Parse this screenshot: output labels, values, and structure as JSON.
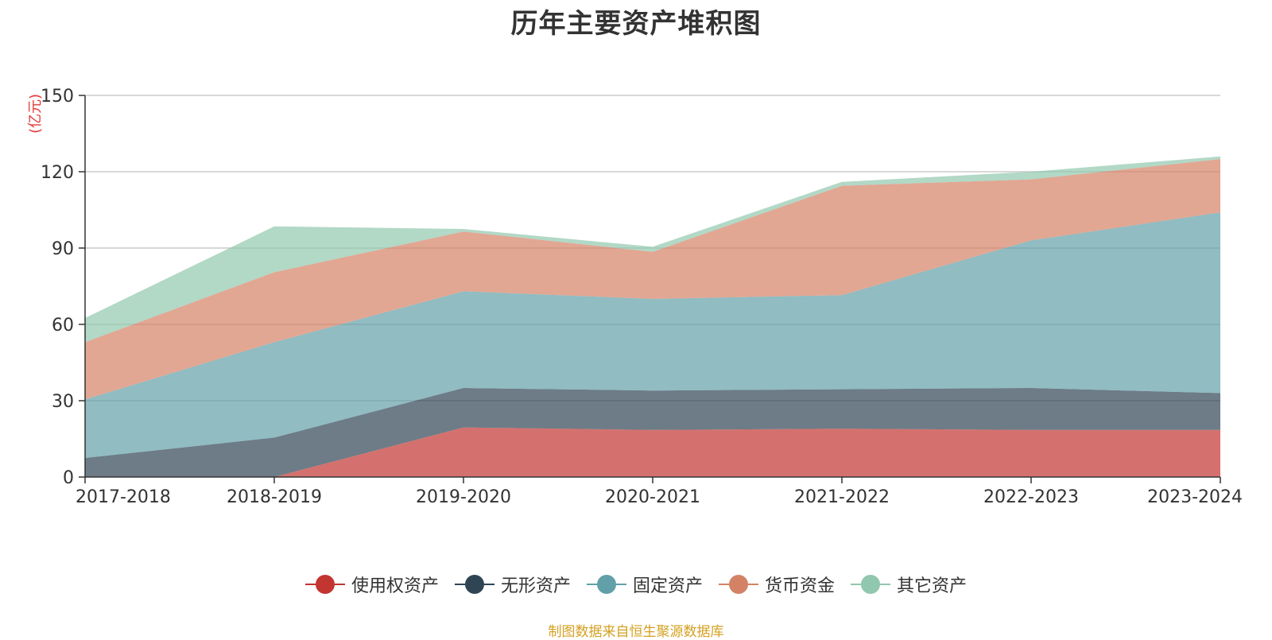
{
  "chart_data": {
    "type": "area",
    "stacked": true,
    "title": "历年主要资产堆积图",
    "unit_label": "(亿元)",
    "categories": [
      "2017-2018",
      "2018-2019",
      "2019-2020",
      "2020-2021",
      "2021-2022",
      "2022-2023",
      "2023-2024"
    ],
    "ylim": [
      0,
      150
    ],
    "yticks": [
      "0",
      "30",
      "60",
      "90",
      "120",
      "150"
    ],
    "grid": true,
    "legend_position": "bottom",
    "series": [
      {
        "name": "使用权资产",
        "color": "#c23531",
        "values": [
          0,
          0,
          19.5,
          18.5,
          19,
          18.5,
          18.5
        ]
      },
      {
        "name": "无形资产",
        "color": "#2f4554",
        "values": [
          7.5,
          15.5,
          15.5,
          15.5,
          15.5,
          16.5,
          14.5
        ]
      },
      {
        "name": "固定资产",
        "color": "#61a0a8",
        "values": [
          23,
          37.5,
          38,
          36,
          37,
          58,
          71
        ]
      },
      {
        "name": "货币资金",
        "color": "#d48265",
        "values": [
          22.5,
          27.5,
          23.5,
          18.5,
          43,
          24,
          21
        ]
      },
      {
        "name": "其它资产",
        "color": "#91c7ae",
        "values": [
          9.5,
          18,
          1,
          2,
          1.5,
          3,
          1
        ]
      }
    ],
    "source_note": "制图数据来自恒生聚源数据库"
  }
}
